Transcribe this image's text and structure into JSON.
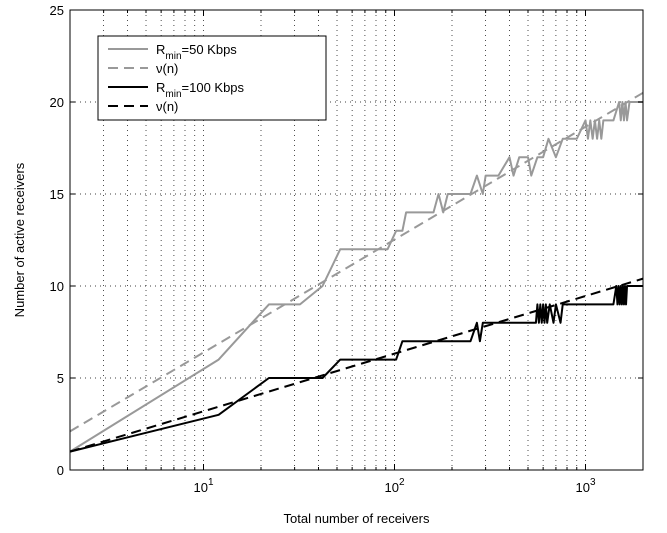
{
  "chart_data": {
    "type": "line",
    "xlabel": "Total number of receivers",
    "ylabel": "Number of active receivers",
    "xscale": "log",
    "xlim": [
      2,
      2000
    ],
    "ylim": [
      0,
      25
    ],
    "xticks": [
      {
        "value": 10,
        "base": "10",
        "exp": "1"
      },
      {
        "value": 100,
        "base": "10",
        "exp": "2"
      },
      {
        "value": 1000,
        "base": "10",
        "exp": "3"
      }
    ],
    "yticks": [
      0,
      5,
      10,
      15,
      20,
      25
    ],
    "grid": true,
    "legend_position": "top-left",
    "colors": {
      "gray": "#999999",
      "black": "#000000"
    },
    "series": [
      {
        "legend_prefix": "R",
        "legend_sub": "min",
        "legend_suffix": "=50 Kbps",
        "color": "#999999",
        "dash": "solid",
        "points": [
          [
            2,
            1
          ],
          [
            12,
            6
          ],
          [
            22,
            9
          ],
          [
            32,
            9
          ],
          [
            42,
            10
          ],
          [
            52,
            12
          ],
          [
            62,
            12
          ],
          [
            72,
            12
          ],
          [
            82,
            12
          ],
          [
            92,
            12
          ],
          [
            102,
            13
          ],
          [
            110,
            13
          ],
          [
            115,
            14
          ],
          [
            125,
            14
          ],
          [
            140,
            14
          ],
          [
            160,
            14
          ],
          [
            170,
            15
          ],
          [
            180,
            14
          ],
          [
            190,
            15
          ],
          [
            220,
            15
          ],
          [
            250,
            15
          ],
          [
            270,
            16
          ],
          [
            290,
            15
          ],
          [
            300,
            16
          ],
          [
            320,
            16
          ],
          [
            350,
            16
          ],
          [
            400,
            17
          ],
          [
            420,
            16
          ],
          [
            450,
            17
          ],
          [
            500,
            17
          ],
          [
            520,
            16
          ],
          [
            560,
            17
          ],
          [
            600,
            17
          ],
          [
            640,
            18
          ],
          [
            700,
            17
          ],
          [
            760,
            18
          ],
          [
            800,
            18
          ],
          [
            900,
            18
          ],
          [
            1000,
            19
          ],
          [
            1030,
            18
          ],
          [
            1060,
            19
          ],
          [
            1090,
            18
          ],
          [
            1120,
            19
          ],
          [
            1150,
            18
          ],
          [
            1180,
            19
          ],
          [
            1210,
            18
          ],
          [
            1240,
            19
          ],
          [
            1300,
            19
          ],
          [
            1400,
            19
          ],
          [
            1500,
            20
          ],
          [
            1530,
            19
          ],
          [
            1560,
            20
          ],
          [
            1590,
            19
          ],
          [
            1620,
            20
          ],
          [
            1650,
            19
          ],
          [
            1700,
            20
          ],
          [
            1800,
            20
          ],
          [
            2000,
            20
          ]
        ]
      },
      {
        "legend_prefix": "ν(n)",
        "legend_sub": "",
        "legend_suffix": "",
        "color": "#999999",
        "dash": "dashed",
        "points": [
          [
            2,
            2.1
          ],
          [
            2000,
            20.5
          ]
        ]
      },
      {
        "legend_prefix": "R",
        "legend_sub": "min",
        "legend_suffix": "=100 Kbps",
        "color": "#000000",
        "dash": "solid",
        "points": [
          [
            2,
            1
          ],
          [
            12,
            3
          ],
          [
            22,
            5
          ],
          [
            32,
            5
          ],
          [
            42,
            5
          ],
          [
            52,
            6
          ],
          [
            62,
            6
          ],
          [
            82,
            6
          ],
          [
            102,
            6
          ],
          [
            110,
            7
          ],
          [
            130,
            7
          ],
          [
            160,
            7
          ],
          [
            200,
            7
          ],
          [
            250,
            7
          ],
          [
            270,
            8
          ],
          [
            280,
            7
          ],
          [
            290,
            8
          ],
          [
            300,
            8
          ],
          [
            350,
            8
          ],
          [
            400,
            8
          ],
          [
            500,
            8
          ],
          [
            550,
            8
          ],
          [
            560,
            9
          ],
          [
            570,
            8
          ],
          [
            580,
            9
          ],
          [
            590,
            8
          ],
          [
            600,
            9
          ],
          [
            610,
            8
          ],
          [
            620,
            9
          ],
          [
            630,
            8
          ],
          [
            650,
            9
          ],
          [
            680,
            8
          ],
          [
            700,
            9
          ],
          [
            740,
            8
          ],
          [
            760,
            9
          ],
          [
            800,
            9
          ],
          [
            900,
            9
          ],
          [
            1000,
            9
          ],
          [
            1200,
            9
          ],
          [
            1400,
            9
          ],
          [
            1450,
            10
          ],
          [
            1470,
            9
          ],
          [
            1490,
            10
          ],
          [
            1510,
            9
          ],
          [
            1530,
            10
          ],
          [
            1550,
            9
          ],
          [
            1570,
            10
          ],
          [
            1590,
            9
          ],
          [
            1610,
            10
          ],
          [
            1630,
            9
          ],
          [
            1650,
            10
          ],
          [
            1700,
            10
          ],
          [
            1800,
            10
          ],
          [
            2000,
            10
          ]
        ]
      },
      {
        "legend_prefix": "ν(n)",
        "legend_sub": "",
        "legend_suffix": "",
        "color": "#000000",
        "dash": "dashed",
        "points": [
          [
            2,
            1
          ],
          [
            2000,
            10.4
          ]
        ]
      }
    ]
  }
}
